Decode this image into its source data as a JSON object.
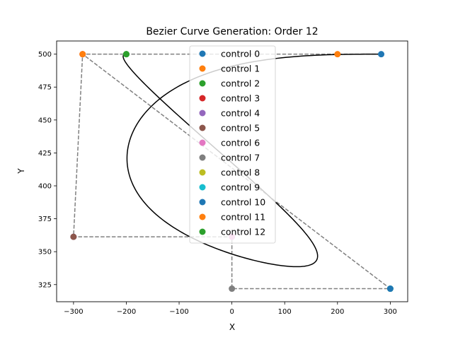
{
  "chart_data": {
    "type": "line",
    "title": "Bezier Curve Generation: Order 12",
    "xlabel": "X",
    "ylabel": "Y",
    "xlim": [
      -332,
      333
    ],
    "ylim": [
      312,
      510
    ],
    "xticks": [
      -300,
      -200,
      -100,
      0,
      100,
      200,
      300
    ],
    "xtick_labels": [
      "−300",
      "−200",
      "−100",
      "0",
      "100",
      "200",
      "300"
    ],
    "yticks": [
      325,
      350,
      375,
      400,
      425,
      450,
      475,
      500
    ],
    "ytick_labels": [
      "325",
      "350",
      "375",
      "400",
      "425",
      "450",
      "475",
      "500"
    ],
    "grid": false,
    "legend_position": "top-center",
    "curve_color": "#000000",
    "polygon_color": "#808080",
    "series": [
      {
        "name": "control 0",
        "x": [
          282.8
        ],
        "y": [
          500
        ],
        "color": "#1f77b4"
      },
      {
        "name": "control 1",
        "x": [
          200
        ],
        "y": [
          500
        ],
        "color": "#ff7f0e"
      },
      {
        "name": "control 2",
        "x": [
          -200
        ],
        "y": [
          500
        ],
        "color": "#2ca02c"
      },
      {
        "name": "control 3",
        "x": [
          -282.8
        ],
        "y": [
          500
        ],
        "color": "#d62728"
      },
      {
        "name": "control 4",
        "x": [
          -300
        ],
        "y": [
          361.3
        ],
        "color": "#9467bd"
      },
      {
        "name": "control 5",
        "x": [
          -300
        ],
        "y": [
          361.3
        ],
        "color": "#8c564b"
      },
      {
        "name": "control 6",
        "x": [
          0
        ],
        "y": [
          361.3
        ],
        "color": "#e377c2"
      },
      {
        "name": "control 7",
        "x": [
          0
        ],
        "y": [
          321.9
        ],
        "color": "#7f7f7f"
      },
      {
        "name": "control 8",
        "x": [
          300
        ],
        "y": [
          321.9
        ],
        "color": "#bcbd22"
      },
      {
        "name": "control 9",
        "x": [
          300
        ],
        "y": [
          321.9
        ],
        "color": "#17becf"
      },
      {
        "name": "control 10",
        "x": [
          300
        ],
        "y": [
          321.9
        ],
        "color": "#1f77b4"
      },
      {
        "name": "control 11",
        "x": [
          -282.8
        ],
        "y": [
          500
        ],
        "color": "#ff7f0e"
      },
      {
        "name": "control 12",
        "x": [
          -200
        ],
        "y": [
          500
        ],
        "color": "#2ca02c"
      }
    ],
    "control_polygon": {
      "x": [
        282.8,
        200,
        -200,
        -282.8,
        -300,
        -300,
        0,
        0,
        300,
        300,
        300,
        -282.8,
        -200
      ],
      "y": [
        500,
        500,
        500,
        500,
        361.3,
        361.3,
        361.3,
        321.9,
        321.9,
        321.9,
        321.9,
        500,
        500
      ]
    }
  }
}
